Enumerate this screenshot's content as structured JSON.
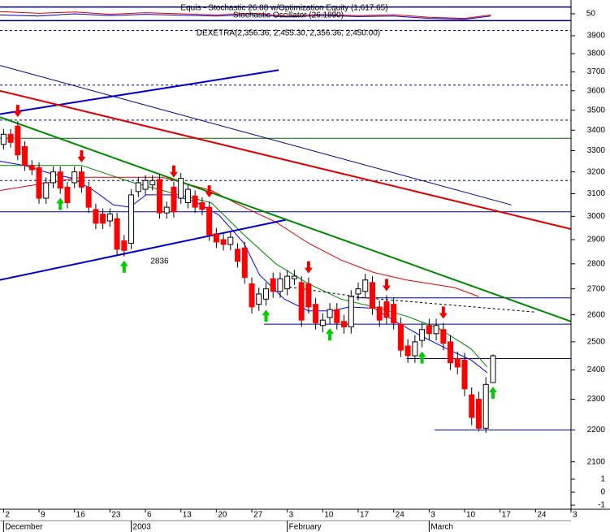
{
  "chart_data": {
    "type": "candlestick",
    "title": "Equis - Stochastic 26.88 w/Optimization Equity (1,617.65)",
    "subtitle": "Stochastic Oscillator (26.1890)",
    "series_label": "DEXETRA(2,356.36, 2,455.30, 2,356.36, 2,450.00)",
    "log_scale": true,
    "up_color": "#ffffff",
    "down_color": "#ff0000",
    "xlim": [
      -0.5,
      80
    ],
    "ylim": [
      2000,
      4000
    ],
    "yticks": [
      2100,
      2200,
      2300,
      2400,
      2500,
      2600,
      2700,
      2800,
      2900,
      3000,
      3100,
      3200,
      3300,
      3400,
      3500,
      3600,
      3700,
      3800,
      3900
    ],
    "xticks": [
      {
        "value": 0,
        "label": "2"
      },
      {
        "value": 5,
        "label": "9"
      },
      {
        "value": 10,
        "label": "16"
      },
      {
        "value": 15,
        "label": "23"
      },
      {
        "value": 20,
        "label": "6"
      },
      {
        "value": 25,
        "label": "13"
      },
      {
        "value": 30,
        "label": "20"
      },
      {
        "value": 35,
        "label": "27"
      },
      {
        "value": 40,
        "label": "3"
      },
      {
        "value": 45,
        "label": "10"
      },
      {
        "value": 50,
        "label": "17"
      },
      {
        "value": 55,
        "label": "24"
      },
      {
        "value": 60,
        "label": "3"
      },
      {
        "value": 65,
        "label": "10"
      },
      {
        "value": 70,
        "label": "17"
      },
      {
        "value": 75,
        "label": "24"
      },
      {
        "value": 80,
        "label": "3"
      }
    ],
    "month_ticks": [
      {
        "value": 0,
        "label": "December"
      },
      {
        "value": 18,
        "label": "2003"
      },
      {
        "value": 40,
        "label": "February"
      },
      {
        "value": 60,
        "label": "March"
      }
    ],
    "x": [
      0,
      1,
      2,
      3,
      4,
      5,
      6,
      7,
      8,
      9,
      10,
      11,
      12,
      13,
      14,
      15,
      16,
      17,
      18,
      19,
      20,
      21,
      22,
      23,
      24,
      25,
      26,
      27,
      28,
      29,
      30,
      31,
      32,
      33,
      34,
      35,
      36,
      37,
      38,
      39,
      40,
      41,
      42,
      43,
      44,
      45,
      46,
      47,
      48,
      49,
      50,
      51,
      52,
      53,
      54,
      55,
      56,
      57,
      58,
      59,
      60,
      61,
      62,
      63,
      64,
      65,
      66,
      67,
      68,
      69
    ],
    "open": [
      3330,
      3380,
      3420,
      3320,
      3230,
      3220,
      3080,
      3150,
      3200,
      3130,
      3150,
      3200,
      3130,
      3030,
      3010,
      2980,
      2990,
      2895,
      2885,
      3110,
      3120,
      3140,
      3165,
      3015,
      3130,
      3080,
      3060,
      3090,
      3060,
      3040,
      2925,
      2900,
      2880,
      2860,
      2865,
      2720,
      2640,
      2660,
      2740,
      2690,
      2700,
      2740,
      2725,
      2720,
      2640,
      2560,
      2590,
      2620,
      2575,
      2555,
      2680,
      2690,
      2725,
      2630,
      2650,
      2640,
      2565,
      2485,
      2450,
      2505,
      2560,
      2530,
      2545,
      2500,
      2440,
      2435,
      2315,
      2300,
      2205,
      2356.36
    ],
    "high": [
      3405,
      3405,
      3445,
      3345,
      3255,
      3245,
      3175,
      3225,
      3225,
      3155,
      3225,
      3225,
      3155,
      3055,
      3035,
      3035,
      3015,
      2920,
      3120,
      3175,
      3185,
      3185,
      3190,
      3065,
      3155,
      3195,
      3145,
      3115,
      3085,
      3065,
      2950,
      2925,
      2935,
      2885,
      2890,
      2745,
      2705,
      2725,
      2765,
      2765,
      2775,
      2775,
      2750,
      2745,
      2665,
      2605,
      2645,
      2645,
      2600,
      2695,
      2725,
      2760,
      2750,
      2655,
      2675,
      2665,
      2590,
      2510,
      2525,
      2570,
      2585,
      2585,
      2570,
      2525,
      2465,
      2460,
      2340,
      2325,
      2375,
      2455.3
    ],
    "low": [
      3305,
      3315,
      3255,
      3205,
      3185,
      3055,
      3055,
      3125,
      3100,
      3035,
      3125,
      3105,
      3015,
      2945,
      2945,
      2955,
      2835,
      2830,
      2860,
      3085,
      3095,
      3115,
      2990,
      2990,
      2995,
      3055,
      3035,
      3015,
      3005,
      2895,
      2865,
      2855,
      2855,
      2785,
      2720,
      2605,
      2615,
      2635,
      2665,
      2665,
      2675,
      2715,
      2555,
      2605,
      2545,
      2535,
      2565,
      2545,
      2530,
      2530,
      2655,
      2665,
      2600,
      2555,
      2565,
      2545,
      2445,
      2425,
      2425,
      2480,
      2505,
      2505,
      2470,
      2400,
      2385,
      2310,
      2215,
      2195,
      2190,
      2356.36
    ],
    "close": [
      3380,
      3340,
      3280,
      3230,
      3210,
      3080,
      3150,
      3200,
      3125,
      3060,
      3200,
      3130,
      3040,
      2970,
      2970,
      3010,
      2860,
      2855,
      3095,
      3150,
      3160,
      3160,
      3015,
      3040,
      3020,
      3170,
      3120,
      3040,
      3030,
      2920,
      2890,
      2880,
      2910,
      2810,
      2745,
      2630,
      2680,
      2700,
      2690,
      2740,
      2750,
      2750,
      2580,
      2630,
      2570,
      2580,
      2620,
      2570,
      2555,
      2670,
      2700,
      2735,
      2625,
      2580,
      2590,
      2570,
      2470,
      2450,
      2500,
      2545,
      2530,
      2560,
      2495,
      2425,
      2410,
      2335,
      2240,
      2205,
      2350,
      2450
    ],
    "low_label": 2836,
    "signals": {
      "sell": [
        2,
        11,
        24,
        29,
        43,
        54,
        62
      ],
      "buy": [
        8,
        17,
        37,
        46,
        59,
        69
      ],
      "sell_color": "#ee0000",
      "buy_color": "#00cc00"
    },
    "trendlines": [
      {
        "color": "#0000cc",
        "x": [
          -0.5,
          38.8
        ],
        "y": [
          3480,
          3710
        ]
      },
      {
        "color": "#0000cc",
        "x": [
          -0.5,
          39.8
        ],
        "y": [
          2735,
          2985
        ]
      },
      {
        "color": "#dd0000",
        "x": [
          -0.5,
          80
        ],
        "y": [
          3600,
          2945
        ]
      },
      {
        "color": "#008800",
        "x": [
          -0.5,
          80
        ],
        "y": [
          3465,
          2575
        ]
      }
    ],
    "averages": [
      {
        "color": "#000080",
        "dash": false,
        "x": [
          -0.5,
          71.6
        ],
        "y": [
          3735,
          3050
        ]
      },
      {
        "color": "#0000ff",
        "dash": false,
        "x": [
          -0.5,
          2.9,
          6.4,
          9.8,
          12.7,
          15.5,
          17.8,
          20.1,
          23.5,
          27,
          30.4,
          33.9,
          36.1,
          39.6,
          43,
          46.4,
          48.7,
          52.2,
          55.6,
          59,
          62.5,
          65.9,
          68.2
        ],
        "y": [
          3250,
          3230,
          3195,
          3170,
          3115,
          3050,
          3040,
          3095,
          3095,
          3065,
          3005,
          2885,
          2755,
          2660,
          2615,
          2615,
          2630,
          2625,
          2570,
          2520,
          2475,
          2435,
          2390
        ]
      },
      {
        "color": "#008800",
        "dash": false,
        "x": [
          -0.5,
          11,
          17.8,
          24.7,
          29.3,
          33.9,
          38.4,
          43,
          47.6,
          52.2,
          56.8,
          61.3,
          65.9,
          68.2
        ],
        "y": [
          3230,
          3230,
          3155,
          3095,
          3060,
          2920,
          2800,
          2720,
          2660,
          2630,
          2595,
          2550,
          2475,
          2410
        ]
      },
      {
        "color": "#dd0000",
        "dash": false,
        "x": [
          -0.5,
          11,
          22.4,
          29.3,
          33.9,
          38.4,
          43,
          47.6,
          52.2,
          56.8,
          63.6,
          67
        ],
        "y": [
          3115,
          3175,
          3175,
          3115,
          3040,
          2975,
          2885,
          2815,
          2765,
          2735,
          2705,
          2670
        ]
      },
      {
        "color": "#000000",
        "dash": true,
        "x": [
          39.6,
          51,
          75.1
        ],
        "y": [
          2710,
          2665,
          2610
        ]
      }
    ],
    "levels": [
      {
        "color": "#000080",
        "dash": true,
        "y": 3930,
        "x": [
          -0.5,
          80
        ]
      },
      {
        "color": "#000080",
        "dash": true,
        "y": 3630,
        "x": [
          -0.5,
          80
        ]
      },
      {
        "color": "#000080",
        "dash": true,
        "y": 3450,
        "x": [
          -0.5,
          80
        ]
      },
      {
        "color": "#000080",
        "dash": true,
        "y": 3160,
        "x": [
          -0.5,
          80
        ]
      },
      {
        "color": "#006600",
        "dash": false,
        "y": 3360,
        "x": [
          -0.5,
          80
        ]
      },
      {
        "color": "#000080",
        "dash": false,
        "y": 3020,
        "x": [
          -0.5,
          80
        ]
      },
      {
        "color": "#000080",
        "dash": false,
        "y": 2665,
        "x": [
          49.7,
          80
        ]
      },
      {
        "color": "#000080",
        "dash": false,
        "y": 2565,
        "x": [
          36.7,
          80
        ]
      },
      {
        "color": "#000080",
        "dash": false,
        "y": 2440,
        "x": [
          56.8,
          80
        ]
      },
      {
        "color": "#000080",
        "dash": false,
        "y": 2200,
        "x": [
          60.8,
          80
        ]
      }
    ],
    "upper_pane": {
      "ylim": [
        0,
        100
      ],
      "yticks": [
        50
      ],
      "levels": [
        80,
        20
      ],
      "series": [
        {
          "color": "#dd0000",
          "x": [
            -0.5,
            5,
            10,
            15,
            20,
            25,
            30,
            35,
            40,
            45,
            50,
            55,
            60,
            65,
            68.7
          ],
          "values": [
            60,
            52,
            58,
            48,
            55,
            50,
            45,
            53,
            40,
            48,
            42,
            46,
            35,
            30,
            45
          ]
        },
        {
          "color": "#0000cc",
          "x": [
            -0.5,
            5,
            10,
            15,
            20,
            25,
            30,
            35,
            40,
            45,
            50,
            55,
            60,
            65,
            68.7
          ],
          "values": [
            45,
            40,
            50,
            42,
            48,
            44,
            40,
            46,
            36,
            42,
            38,
            40,
            30,
            26,
            40
          ]
        }
      ]
    },
    "lower_pane": {
      "ylim": [
        -1.5,
        1.5
      ],
      "yticks": [
        1,
        0,
        -1
      ]
    }
  }
}
